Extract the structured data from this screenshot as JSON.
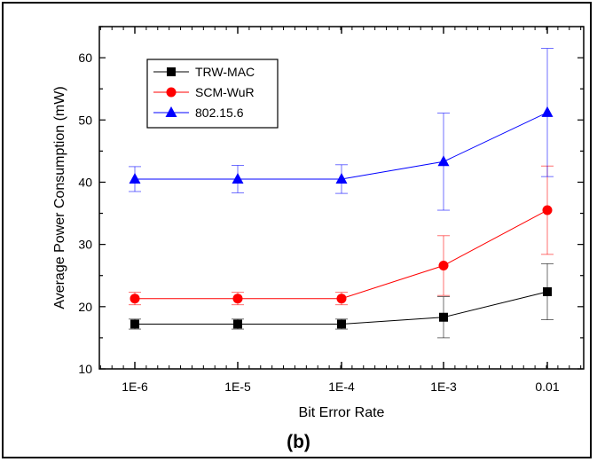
{
  "figure": {
    "panel_label": "(b)"
  },
  "chart_data": {
    "type": "line",
    "xlabel": "Bit Error Rate",
    "ylabel": "Average Power Consumption (mW)",
    "categories": [
      "1E-6",
      "1E-5",
      "1E-4",
      "1E-3",
      "0.01"
    ],
    "ylim": [
      10,
      65
    ],
    "yticks": [
      10,
      20,
      30,
      40,
      50,
      60
    ],
    "grid": false,
    "legend_position": "top-left",
    "series": [
      {
        "name": "TRW-MAC",
        "color": "#000000",
        "marker": "square",
        "values": [
          17.2,
          17.2,
          17.2,
          18.3,
          22.4
        ],
        "errors": [
          0.8,
          0.8,
          0.8,
          3.3,
          4.5
        ]
      },
      {
        "name": "SCM-WuR",
        "color": "#ff0000",
        "marker": "circle",
        "values": [
          21.3,
          21.3,
          21.3,
          26.6,
          35.5
        ],
        "errors": [
          1.0,
          1.0,
          1.0,
          4.8,
          7.1
        ]
      },
      {
        "name": "802.15.6",
        "color": "#0000ff",
        "marker": "triangle",
        "values": [
          40.5,
          40.5,
          40.5,
          43.3,
          51.2
        ],
        "errors": [
          2.0,
          2.2,
          2.3,
          7.8,
          10.3
        ]
      }
    ]
  }
}
